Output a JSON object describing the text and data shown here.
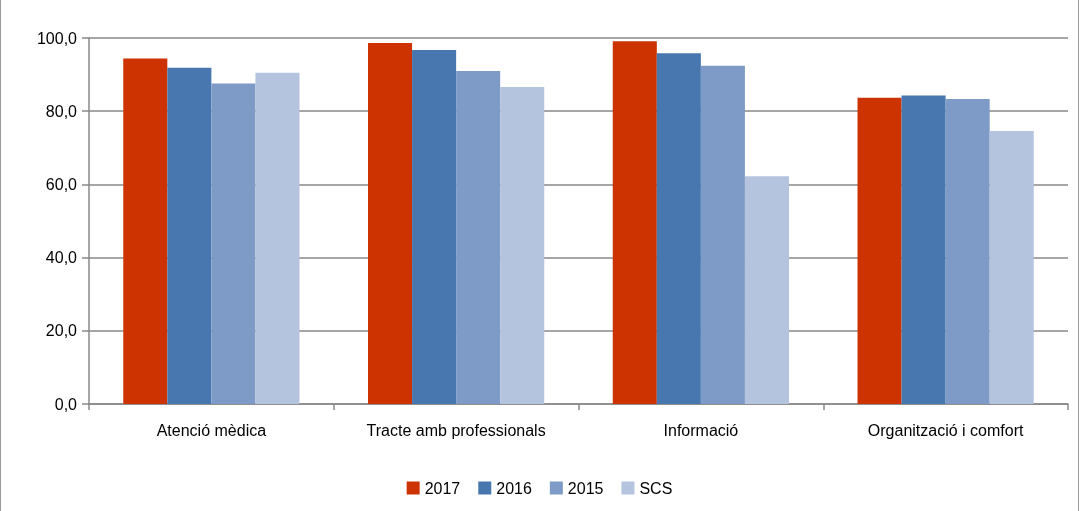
{
  "chart_data": {
    "type": "bar",
    "categories": [
      "Atenció mèdica",
      "Tracte amb professionals",
      "Informació",
      "Organització i comfort"
    ],
    "series": [
      {
        "name": "2017",
        "color": "#cc3300",
        "values": [
          94.4,
          98.6,
          99.1,
          83.7
        ]
      },
      {
        "name": "2016",
        "color": "#4877b0",
        "values": [
          91.9,
          96.7,
          95.8,
          84.3
        ]
      },
      {
        "name": "2015",
        "color": "#7e9bc8",
        "values": [
          87.6,
          91.0,
          92.4,
          83.3
        ]
      },
      {
        "name": "SCS",
        "color": "#b4c3de",
        "values": [
          90.5,
          86.6,
          62.2,
          74.6
        ]
      }
    ],
    "ylim": [
      0,
      100
    ],
    "yticks": [
      {
        "value": 0,
        "label": "0,0"
      },
      {
        "value": 20,
        "label": "20,0"
      },
      {
        "value": 40,
        "label": "40,0"
      },
      {
        "value": 60,
        "label": "60,0"
      },
      {
        "value": 80,
        "label": "80,0"
      },
      {
        "value": 100,
        "label": "100,0"
      }
    ],
    "grid": "y",
    "legend": "bottom"
  }
}
